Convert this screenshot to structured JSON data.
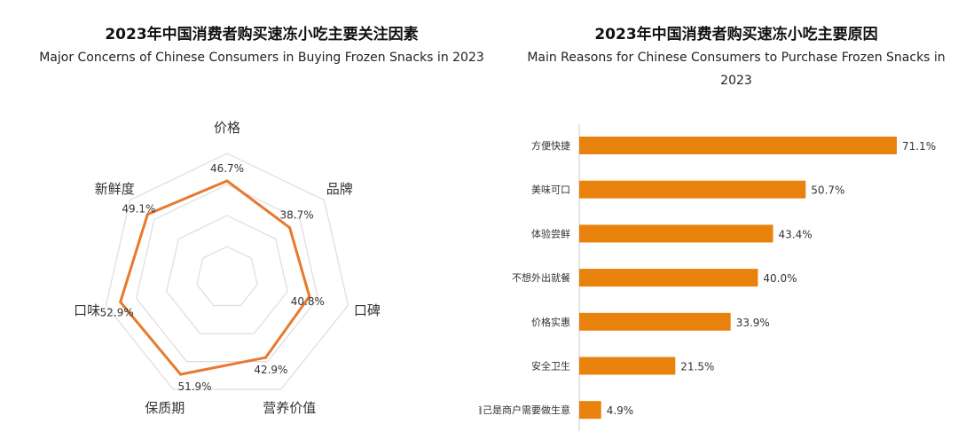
{
  "chart_data": [
    {
      "type": "radar",
      "title": "2023年中国消费者购买速冻小吃主要关注因素",
      "subtitle": "Major Concerns of Chinese Consumers in Buying Frozen Snacks in 2023",
      "categories": [
        "价格",
        "品牌",
        "口碑",
        "营养价值",
        "保质期",
        "口味",
        "新鲜度"
      ],
      "values": [
        46.7,
        38.7,
        40.8,
        42.9,
        51.9,
        52.9,
        49.1
      ],
      "value_labels": [
        "46.7%",
        "38.7%",
        "40.8%",
        "42.9%",
        "51.9%",
        "52.9%",
        "49.1%"
      ],
      "range": [
        0,
        60
      ],
      "grid": true,
      "color": "#E8792F"
    },
    {
      "type": "bar",
      "orientation": "horizontal",
      "title": "2023年中国消费者购买速冻小吃主要原因",
      "subtitle": "Main Reasons for Chinese Consumers to Purchase Frozen Snacks in 2023",
      "categories": [
        "方便快捷",
        "美味可口",
        "体验尝鲜",
        "不想外出就餐",
        "价格实惠",
        "安全卫生",
        "自己是商户需要做生意"
      ],
      "values": [
        71.1,
        50.7,
        43.4,
        40.0,
        33.9,
        21.5,
        4.9
      ],
      "value_labels": [
        "71.1%",
        "50.7%",
        "43.4%",
        "40.0%",
        "33.9%",
        "21.5%",
        "4.9%"
      ],
      "xlim": [
        0,
        71.1
      ],
      "grid": false,
      "color": "#E8820C"
    }
  ]
}
